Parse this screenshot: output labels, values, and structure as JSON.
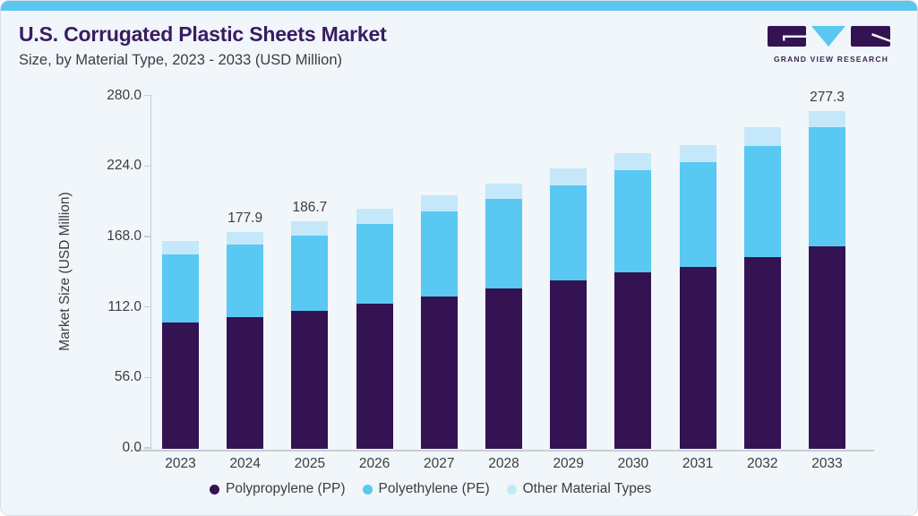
{
  "header": {
    "title": "U.S. Corrugated Plastic Sheets Market",
    "subtitle": "Size, by Material Type, 2023 - 2033 (USD Million)"
  },
  "logo": {
    "text": "GRAND VIEW RESEARCH"
  },
  "colors": {
    "accent_strip": "#5BC7F0",
    "card_background": "#F0F6F9",
    "title_text": "#3A1C61",
    "body_text": "#3C3C43",
    "axis_line": "#C8CDD2",
    "polypropylene": "#331352",
    "polyethylene": "#59C8F3",
    "other_materials": "#C4E8FA"
  },
  "chart_data": {
    "type": "bar",
    "stacked": true,
    "title": "U.S. Corrugated Plastic Sheets Market Size, by Material Type, 2023 - 2033 (USD Million)",
    "xlabel": "",
    "ylabel": "Market Size (USD Million)",
    "ylim": [
      0,
      280
    ],
    "yticks": [
      0.0,
      56.0,
      112.0,
      168.0,
      224.0,
      280.0
    ],
    "ytick_labels": [
      "0.0",
      "56.0",
      "112.0",
      "168.0",
      "224.0",
      "280.0"
    ],
    "grid": false,
    "legend_position": "bottom",
    "categories": [
      "2023",
      "2024",
      "2025",
      "2026",
      "2027",
      "2028",
      "2029",
      "2030",
      "2031",
      "2032",
      "2033"
    ],
    "series": [
      {
        "name": "Polypropylene (PP)",
        "color": "#331352",
        "values": [
          103.4,
          107.9,
          113.3,
          119.1,
          125.1,
          131.5,
          138.2,
          145.2,
          149.1,
          157.1,
          166.3
        ]
      },
      {
        "name": "Polyethylene (PE)",
        "color": "#59C8F3",
        "values": [
          56.0,
          59.4,
          61.9,
          65.1,
          69.5,
          73.3,
          77.8,
          83.7,
          86.0,
          91.7,
          97.7
        ]
      },
      {
        "name": "Other Material Types",
        "color": "#C4E8FA",
        "values": [
          11.1,
          10.6,
          11.5,
          12.9,
          13.2,
          12.9,
          14.2,
          13.7,
          14.2,
          15.4,
          13.3
        ]
      }
    ],
    "totals": [
      170.5,
      177.9,
      186.7,
      197.1,
      207.8,
      217.7,
      230.2,
      242.6,
      249.3,
      264.2,
      277.3
    ],
    "total_labels_shown": {
      "2024": "177.9",
      "2025": "186.7",
      "2033": "277.3"
    }
  }
}
